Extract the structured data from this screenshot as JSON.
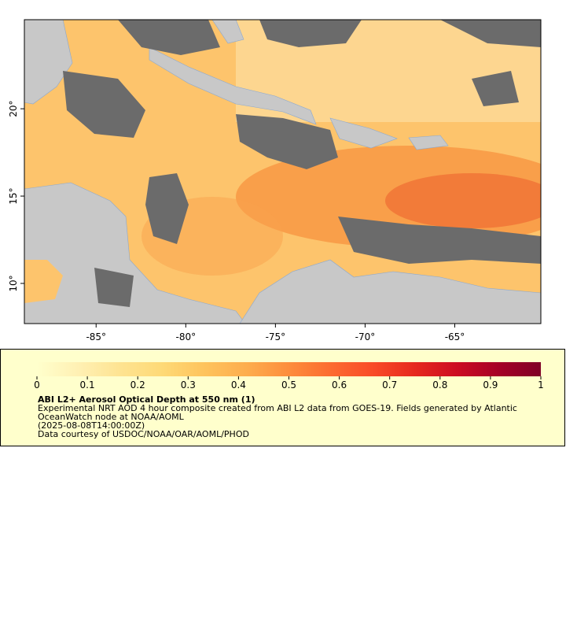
{
  "map": {
    "xlim": [
      -89,
      -60.2
    ],
    "ylim": [
      7.7,
      25.1
    ],
    "xticks": [
      {
        "value": -85,
        "label": "-85°"
      },
      {
        "value": -80,
        "label": "-80°"
      },
      {
        "value": -75,
        "label": "-75°"
      },
      {
        "value": -70,
        "label": "-70°"
      },
      {
        "value": -65,
        "label": "-65°"
      }
    ],
    "yticks": [
      {
        "value": 10,
        "label": "10°"
      },
      {
        "value": 15,
        "label": "15°"
      },
      {
        "value": 20,
        "label": "20°"
      }
    ]
  },
  "colorbar": {
    "range": [
      0,
      1
    ],
    "ticks": [
      0,
      0.1,
      0.2,
      0.3,
      0.4,
      0.5,
      0.6,
      0.7,
      0.8,
      0.9,
      1
    ],
    "colors": [
      "#ffffcc",
      "#fff0b3",
      "#fee391",
      "#fed976",
      "#fec35c",
      "#fdad4e",
      "#fd8d3c",
      "#fc6b30",
      "#f94b28",
      "#e6281e",
      "#cc0c22",
      "#a50026",
      "#800026"
    ]
  },
  "legend": {
    "title": "ABI L2+ Aerosol Optical Depth at 550 nm (1)",
    "lines": [
      "Experimental NRT AOD 4 hour composite created from ABI L2 data from GOES-19. Fields generated by Atlantic",
      "OceanWatch node at NOAA/AOML",
      "(2025-08-08T14:00:00Z)",
      "Data courtesy of USDOC/NOAA/OAR/AOML/PHOD"
    ]
  }
}
